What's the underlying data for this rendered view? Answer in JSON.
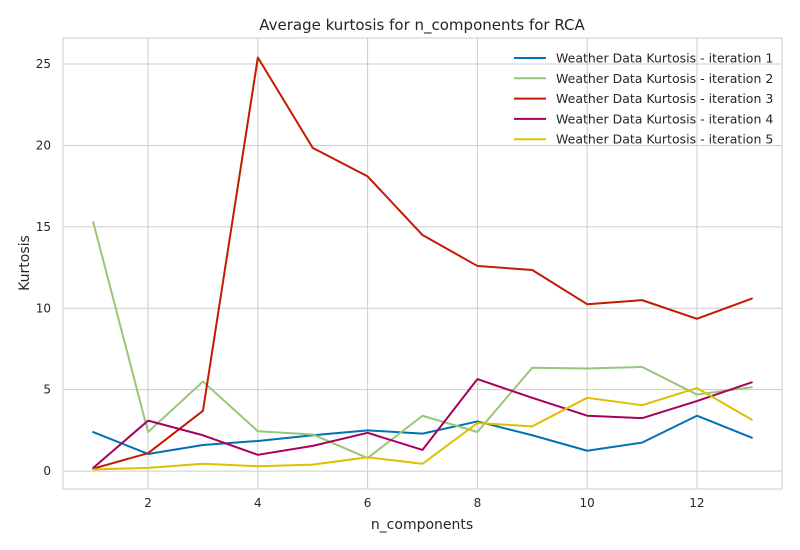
{
  "chart_data": {
    "type": "line",
    "title": "Average kurtosis for n_components for RCA",
    "xlabel": "n_components",
    "ylabel": "Kurtosis",
    "xlim": [
      0.45,
      13.55
    ],
    "ylim": [
      -1.1,
      26.6
    ],
    "x_ticks": [
      2,
      4,
      6,
      8,
      10,
      12
    ],
    "y_ticks": [
      0,
      5,
      10,
      15,
      20,
      25
    ],
    "grid": true,
    "legend_position": "top-right",
    "x": [
      1,
      2,
      3,
      4,
      5,
      6,
      7,
      8,
      9,
      10,
      11,
      12,
      13
    ],
    "series": [
      {
        "name": "Weather Data Kurtosis - iteration 1",
        "color": "#0072b2",
        "values": [
          2.4,
          1.05,
          1.6,
          1.85,
          2.2,
          2.5,
          2.3,
          3.05,
          2.2,
          1.25,
          1.75,
          3.4,
          2.05
        ]
      },
      {
        "name": "Weather Data Kurtosis - iteration 2",
        "color": "#99c57a",
        "values": [
          15.3,
          2.4,
          5.5,
          2.45,
          2.25,
          0.8,
          3.4,
          2.4,
          6.35,
          6.3,
          6.4,
          4.7,
          5.15
        ]
      },
      {
        "name": "Weather Data Kurtosis - iteration 3",
        "color": "#c41a00",
        "values": [
          0.15,
          1.1,
          3.7,
          25.4,
          19.85,
          18.1,
          14.5,
          12.6,
          12.35,
          10.25,
          10.5,
          9.35,
          10.6
        ]
      },
      {
        "name": "Weather Data Kurtosis - iteration 4",
        "color": "#a8005b",
        "values": [
          0.2,
          3.1,
          2.2,
          1.0,
          1.55,
          2.35,
          1.3,
          5.65,
          4.5,
          3.4,
          3.25,
          4.3,
          5.45
        ]
      },
      {
        "name": "Weather Data Kurtosis - iteration 5",
        "color": "#dcc100",
        "values": [
          0.1,
          0.2,
          0.45,
          0.3,
          0.4,
          0.85,
          0.45,
          2.95,
          2.75,
          4.5,
          4.05,
          5.1,
          3.15
        ]
      }
    ]
  }
}
